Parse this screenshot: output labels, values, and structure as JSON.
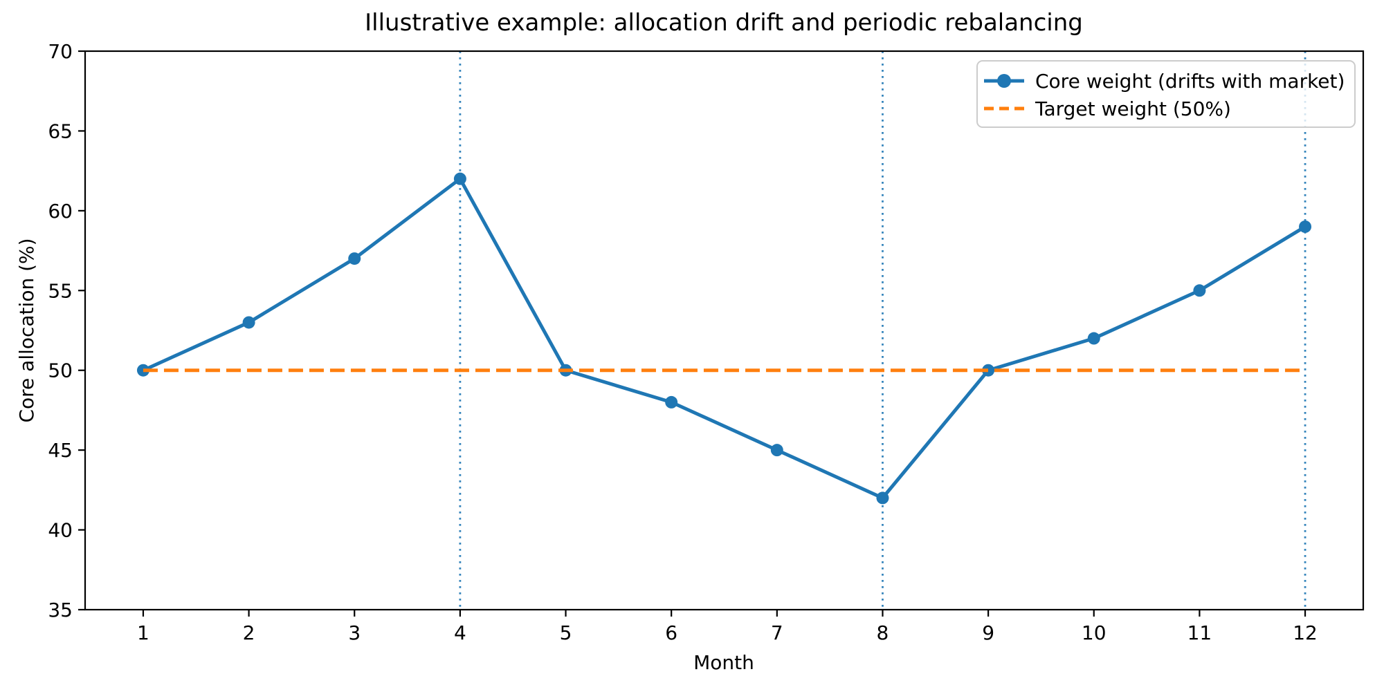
{
  "figure": {
    "title": "Illustrative example: allocation drift and periodic rebalancing",
    "background": "#ffffff",
    "text_color": "#000000",
    "spine_color": "#000000"
  },
  "chart_data": {
    "type": "line",
    "title": "Illustrative example: allocation drift and periodic rebalancing",
    "xlabel": "Month",
    "ylabel": "Core allocation (%)",
    "x": [
      1,
      2,
      3,
      4,
      5,
      6,
      7,
      8,
      9,
      10,
      11,
      12
    ],
    "series": [
      {
        "name": "Core weight (drifts with market)",
        "values": [
          50,
          53,
          57,
          62,
          50,
          48,
          45,
          42,
          50,
          52,
          55,
          59
        ],
        "color": "#1f77b4",
        "linestyle": "solid",
        "marker": "circle"
      },
      {
        "name": "Target weight (50%)",
        "values": [
          50,
          50,
          50,
          50,
          50,
          50,
          50,
          50,
          50,
          50,
          50,
          50
        ],
        "color": "#ff7f0e",
        "linestyle": "dashed",
        "marker": "none"
      }
    ],
    "rebalance_vlines": {
      "months": [
        4,
        8,
        12
      ],
      "color": "#1f77b4",
      "linestyle": "dotted"
    },
    "xlim": [
      0.45,
      12.55
    ],
    "ylim": [
      35,
      70
    ],
    "xticks": [
      1,
      2,
      3,
      4,
      5,
      6,
      7,
      8,
      9,
      10,
      11,
      12
    ],
    "yticks": [
      35,
      40,
      45,
      50,
      55,
      60,
      65,
      70
    ],
    "grid": false,
    "legend_position": "upper right",
    "legend_border_color": "#cccccc"
  }
}
